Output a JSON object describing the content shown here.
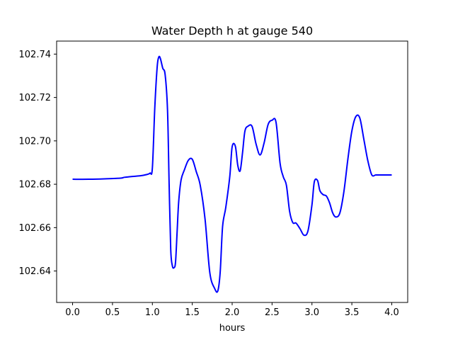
{
  "chart_data": {
    "type": "line",
    "title": "Water Depth h at gauge 540",
    "xlabel": "hours",
    "ylabel": "",
    "xlim": [
      -0.2,
      4.2
    ],
    "ylim": [
      102.6255,
      102.746
    ],
    "xticks": [
      0.0,
      0.5,
      1.0,
      1.5,
      2.0,
      2.5,
      3.0,
      3.5,
      4.0
    ],
    "xtick_labels": [
      "0.0",
      "0.5",
      "1.0",
      "1.5",
      "2.0",
      "2.5",
      "3.0",
      "3.5",
      "4.0"
    ],
    "yticks": [
      102.64,
      102.66,
      102.68,
      102.7,
      102.72,
      102.74
    ],
    "ytick_labels": [
      "102.64",
      "102.66",
      "102.68",
      "102.70",
      "102.72",
      "102.74"
    ],
    "grid": false,
    "color": "#0000ff",
    "series": [
      {
        "x": [
          0.0,
          0.2,
          0.4,
          0.6,
          0.65,
          0.75,
          0.85,
          0.92,
          0.97,
          1.0,
          1.03,
          1.06,
          1.08,
          1.1,
          1.13,
          1.16,
          1.19,
          1.21,
          1.23,
          1.25,
          1.27,
          1.29,
          1.31,
          1.33,
          1.36,
          1.4,
          1.45,
          1.5,
          1.55,
          1.6,
          1.66,
          1.72,
          1.78,
          1.82,
          1.85,
          1.88,
          1.92,
          1.97,
          2.0,
          2.04,
          2.07,
          2.1,
          2.13,
          2.16,
          2.2,
          2.25,
          2.3,
          2.35,
          2.4,
          2.45,
          2.5,
          2.55,
          2.6,
          2.64,
          2.68,
          2.72,
          2.76,
          2.8,
          2.85,
          2.9,
          2.95,
          3.0,
          3.03,
          3.07,
          3.1,
          3.14,
          3.18,
          3.22,
          3.26,
          3.3,
          3.35,
          3.4,
          3.45,
          3.5,
          3.55,
          3.6,
          3.65,
          3.7,
          3.75,
          3.8,
          3.85,
          3.9,
          3.95,
          4.0
        ],
        "y": [
          102.6823,
          102.6823,
          102.6825,
          102.6828,
          102.6832,
          102.6836,
          102.6839,
          102.6844,
          102.6851,
          102.6875,
          102.715,
          102.734,
          102.7386,
          102.738,
          102.7335,
          102.7305,
          102.714,
          102.68,
          102.65,
          102.6425,
          102.6415,
          102.644,
          102.658,
          102.672,
          102.682,
          102.6865,
          102.691,
          102.6915,
          102.6858,
          102.6795,
          102.664,
          102.6392,
          102.632,
          102.6308,
          102.6395,
          102.6605,
          102.6693,
          102.6835,
          102.6973,
          102.6975,
          102.6888,
          102.6862,
          102.6945,
          102.7045,
          102.7068,
          102.7066,
          102.6985,
          102.6935,
          102.699,
          102.7075,
          102.7095,
          102.7085,
          102.6898,
          102.6835,
          102.6795,
          102.6675,
          102.6623,
          102.6621,
          102.6595,
          102.6565,
          102.6585,
          102.6705,
          102.6812,
          102.6817,
          102.677,
          102.6752,
          102.6746,
          102.6715,
          102.6668,
          102.6649,
          102.6668,
          102.6765,
          102.6915,
          102.7045,
          102.7112,
          102.7105,
          102.7008,
          102.6909,
          102.6843,
          102.6843,
          102.6843,
          102.6843,
          102.6843,
          102.6843
        ]
      }
    ]
  }
}
